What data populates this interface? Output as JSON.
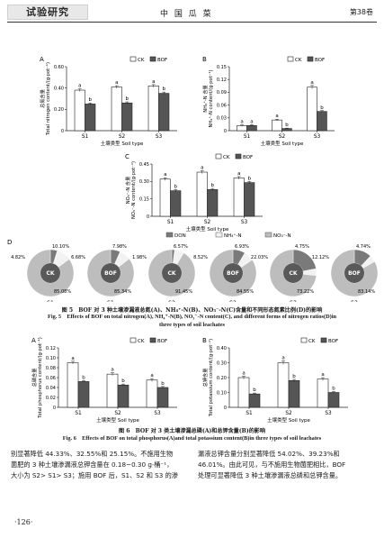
{
  "header": {
    "section_tag": "试验研究",
    "journal": "中 国 瓜 菜",
    "volume": "第38卷"
  },
  "units": {
    "bar_charts": "BOF"
  },
  "chart_data": [
    {
      "id": "fig5A",
      "type": "bar",
      "panel": "A",
      "ylabel": "总氮含量\nTotal nitrogen content/(g·pot⁻¹)",
      "xlabel": "土壤类型 Soil type",
      "categories": [
        "S1",
        "S2",
        "S3"
      ],
      "ylim": [
        0,
        0.6
      ],
      "yticks": [
        "0",
        "0.20",
        "0.40",
        "0.60"
      ],
      "series": [
        {
          "name": "CK",
          "values": [
            0.38,
            0.41,
            0.42
          ],
          "errors": [
            0.012,
            0.012,
            0.012
          ],
          "labels": [
            "a",
            "a",
            "a"
          ]
        },
        {
          "name": "BOF",
          "values": [
            0.25,
            0.26,
            0.35
          ],
          "errors": [
            0.01,
            0.01,
            0.012
          ],
          "labels": [
            "b",
            "b",
            "b"
          ]
        }
      ]
    },
    {
      "id": "fig5B",
      "type": "bar",
      "panel": "B",
      "ylabel": "NH₄⁺-N 含量\nNH₄⁺-N content/(g·pot⁻¹)",
      "xlabel": "土壤类型 Soil type",
      "categories": [
        "S1",
        "S2",
        "S3"
      ],
      "ylim": [
        0,
        0.15
      ],
      "yticks": [
        "0",
        "0.03",
        "0.06",
        "0.09",
        "0.12",
        "0.15"
      ],
      "series": [
        {
          "name": "CK",
          "values": [
            0.012,
            0.025,
            0.102
          ],
          "errors": [
            0.002,
            0.002,
            0.004
          ],
          "labels": [
            "a",
            "a",
            "a"
          ]
        },
        {
          "name": "BOF",
          "values": [
            0.012,
            0.005,
            0.045
          ],
          "errors": [
            0.002,
            0.001,
            0.002
          ],
          "labels": [
            "a",
            "b",
            "b"
          ]
        }
      ]
    },
    {
      "id": "fig5C",
      "type": "bar",
      "panel": "C",
      "ylabel": "NO₃⁻-N 含量\nNO₃⁻-N content/(g·pot⁻¹)",
      "xlabel": "土壤类型 Soil type",
      "categories": [
        "S1",
        "S2",
        "S3"
      ],
      "ylim": [
        0,
        0.45
      ],
      "yticks": [
        "0",
        "0.15",
        "0.30",
        "0.45"
      ],
      "series": [
        {
          "name": "CK",
          "values": [
            0.32,
            0.38,
            0.33
          ],
          "errors": [
            0.012,
            0.012,
            0.012
          ],
          "labels": [
            "a",
            "a",
            "a"
          ]
        },
        {
          "name": "BOF",
          "values": [
            0.22,
            0.23,
            0.29
          ],
          "errors": [
            0.01,
            0.01,
            0.01
          ],
          "labels": [
            "b",
            "b",
            "b"
          ]
        }
      ]
    },
    {
      "id": "fig5D",
      "type": "pie",
      "panel": "D",
      "legend": [
        "DON",
        "NH₄⁺-N",
        "NO₃⁻-N"
      ],
      "groups": [
        {
          "soil": "S1",
          "treatment": "CK",
          "don": 4.82,
          "nh4": 10.1,
          "no3": 85.08
        },
        {
          "soil": "S1",
          "treatment": "BOF",
          "don": 6.68,
          "nh4": 7.98,
          "no3": 85.34
        },
        {
          "soil": "S2",
          "treatment": "CK",
          "don": 1.98,
          "nh4": 6.57,
          "no3": 91.45
        },
        {
          "soil": "S2",
          "treatment": "BOF",
          "don": 8.52,
          "nh4": 6.93,
          "no3": 84.55
        },
        {
          "soil": "S3",
          "treatment": "CK",
          "don": 22.03,
          "nh4": 4.75,
          "no3": 73.22
        },
        {
          "soil": "S3",
          "treatment": "BOF",
          "don": 12.12,
          "nh4": 4.74,
          "no3": 83.14
        }
      ]
    },
    {
      "id": "fig6A",
      "type": "bar",
      "panel": "A",
      "ylabel": "总磷含量\nTotal phosphorus content/(g·pot⁻¹)",
      "xlabel": "土壤类型 Soil type",
      "categories": [
        "S1",
        "S2",
        "S3"
      ],
      "ylim": [
        0,
        0.12
      ],
      "yticks": [
        "0",
        "0.02",
        "0.04",
        "0.06",
        "0.08",
        "0.10",
        "0.12"
      ],
      "series": [
        {
          "name": "CK",
          "values": [
            0.09,
            0.067,
            0.055
          ],
          "errors": [
            0.003,
            0.003,
            0.003
          ],
          "labels": [
            "a",
            "a",
            "a"
          ]
        },
        {
          "name": "BOF",
          "values": [
            0.052,
            0.045,
            0.04
          ],
          "errors": [
            0.002,
            0.002,
            0.002
          ],
          "labels": [
            "b",
            "b",
            "b"
          ]
        }
      ]
    },
    {
      "id": "fig6B",
      "type": "bar",
      "panel": "B",
      "ylabel": "总钾含量\nTotal potassium content/(g·pot⁻¹)",
      "xlabel": "土壤类型 Soil type",
      "categories": [
        "S1",
        "S2",
        "S3"
      ],
      "ylim": [
        0,
        0.4
      ],
      "yticks": [
        "0",
        "0.10",
        "0.20",
        "0.30",
        "0.40"
      ],
      "series": [
        {
          "name": "CK",
          "values": [
            0.2,
            0.3,
            0.19
          ],
          "errors": [
            0.01,
            0.012,
            0.01
          ],
          "labels": [
            "a",
            "a",
            "a"
          ]
        },
        {
          "name": "BOF",
          "values": [
            0.09,
            0.18,
            0.1
          ],
          "errors": [
            0.006,
            0.008,
            0.006
          ],
          "labels": [
            "b",
            "b",
            "b"
          ]
        }
      ]
    }
  ],
  "captions": {
    "fig5_zh": "图 5　BOF 对 3 种土壤渗漏液总氮(A)、NH₄⁺-N(B)、NO₃⁻-N(C)含量和不同形态氮素比例(D)的影响",
    "fig5_en_1": "Fig. 5　Effects of BOF on total nitrogen(A), NH₄⁺-N(B), NO₃⁻-N content(C), and different forms of nitrogen ratios(D)in",
    "fig5_en_2": "three types of soil leachates",
    "fig6_zh": "图 6　BOF 对 3 类土壤渗漏总磷(A)和总钾含量(B)的影响",
    "fig6_en": "Fig. 6　Effects of BOF on total phosphorus(A)and total potassium content(B)in three types of soil leachates"
  },
  "body": {
    "left_1": "别显著降低 44.33%、32.55%和 25.15%。不施用生物",
    "left_2": "菌肥的 3 种土壤渗漏液总钾含量在 0.18~0.30 g·桶⁻¹，",
    "left_3": "大小为 S2> S1> S3；施用 BOF 后，S1、S2 和 S3 的渗",
    "right_1": "漏液总钾含量分别显著降低 54.02%、39.23%和",
    "right_2": "46.01%。由此可见，与不施用生物菌肥相比，BOF",
    "right_3": "处理可显著降低 3 种土壤渗漏液总磷和总钾含量。"
  },
  "page_number": "·126·"
}
